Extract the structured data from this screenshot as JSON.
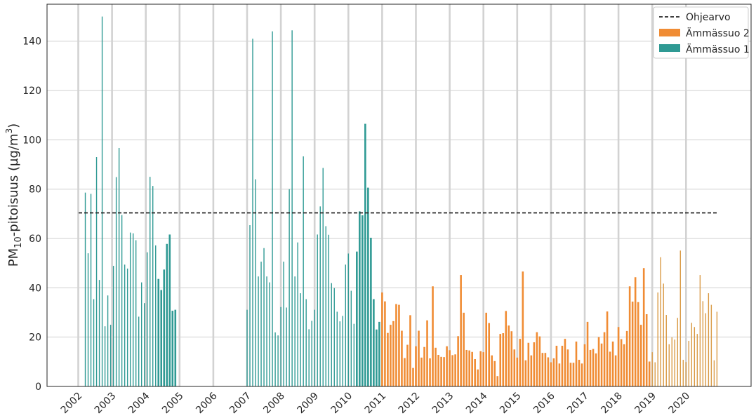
{
  "chart_data": {
    "type": "bar",
    "title": "",
    "xlabel": "",
    "ylabel": {
      "prefix": "PM",
      "sub": "10",
      "middle": "-pitoisuus (µg/m",
      "sup": "3",
      "suffix": ")"
    },
    "ylim": [
      0,
      155
    ],
    "yticks": [
      0,
      20,
      40,
      60,
      80,
      100,
      120,
      140
    ],
    "xticks": [
      "2002",
      "2003",
      "2004",
      "2005",
      "2006",
      "2007",
      "2008",
      "2009",
      "2010",
      "2011",
      "2012",
      "2013",
      "2014",
      "2015",
      "2016",
      "2017",
      "2018",
      "2019",
      "2020"
    ],
    "grid": true,
    "legend_position": "top-right",
    "guideline": {
      "name": "Ohjearvo",
      "value": 70.4,
      "style": "dashed",
      "color": "#262626"
    },
    "series": [
      {
        "name": "Ämmässuo 1",
        "color": "#2f9a94",
        "segments": [
          {
            "values": [
              78.6,
              54.0,
              78.1,
              35.4,
              93.0,
              43.2,
              150.0,
              24.4,
              36.9,
              25.0,
              48.9,
              84.9,
              96.7,
              69.5,
              49.4,
              47.8,
              62.4,
              62.1,
              59.3,
              28.3,
              42.2,
              33.8,
              54.4,
              85.0,
              81.3,
              57.2,
              43.6,
              39.1,
              47.4,
              57.8,
              61.6,
              30.7,
              31.1
            ]
          },
          {
            "values": [
              31.1,
              65.4,
              141.0,
              84.0,
              44.6,
              50.6,
              56.1,
              44.6,
              42.2,
              144.0,
              21.9,
              20.7,
              32.2,
              50.6,
              32.0,
              80.0,
              144.4,
              44.6,
              58.4,
              37.8,
              93.3,
              35.4,
              23.2,
              26.6,
              31.1,
              61.6,
              73.0,
              88.6,
              65.0,
              61.5,
              41.9,
              39.9,
              30.3,
              26.4,
              28.6,
              49.4,
              53.9,
              38.8,
              25.4,
              54.7,
              71.0,
              69.4,
              106.5,
              80.6,
              60.3,
              35.4,
              23.1,
              26.2
            ]
          }
        ]
      },
      {
        "name": "Ämmässuo 2",
        "color": "#f08c34",
        "values": [
          38.1,
          34.5,
          21.7,
          25.0,
          26.5,
          33.4,
          33.1,
          22.6,
          11.5,
          16.9,
          28.9,
          7.5,
          16.3,
          22.6,
          11.7,
          16.0,
          26.8,
          11.4,
          40.6,
          15.7,
          12.8,
          12.0,
          11.9,
          16.3,
          14.7,
          12.7,
          13.0,
          20.4,
          45.2,
          29.9,
          14.8,
          14.6,
          14.0,
          11.1,
          6.9,
          14.3,
          13.9,
          29.9,
          25.7,
          12.6,
          10.3,
          4.2,
          21.3,
          21.6,
          30.6,
          24.7,
          22.4,
          15.0,
          11.7,
          19.3,
          46.6,
          10.6,
          17.7,
          12.6,
          17.9,
          22.0,
          20.3,
          13.6,
          13.6,
          11.8,
          9.8,
          11.4,
          16.5,
          9.3,
          16.5,
          19.3,
          15.0,
          9.6,
          9.6,
          18.2,
          10.8,
          9.3,
          17.1,
          26.2,
          14.8,
          15.2,
          13.4,
          20.0,
          17.4,
          22.0,
          30.4,
          14.1,
          18.2,
          12.6,
          24.1,
          19.2,
          17.1,
          22.5,
          40.6,
          34.4,
          44.3,
          34.2,
          25.0,
          48.0,
          29.3,
          10.1,
          13.9,
          9.8,
          38.1,
          52.4,
          41.7,
          29.0,
          17.1,
          19.9,
          19.0,
          27.8,
          55.1,
          10.8,
          9.9,
          18.5,
          25.8,
          24.1,
          21.3,
          45.2,
          34.6,
          29.7,
          37.8,
          33.1,
          10.6,
          30.3
        ]
      }
    ]
  }
}
